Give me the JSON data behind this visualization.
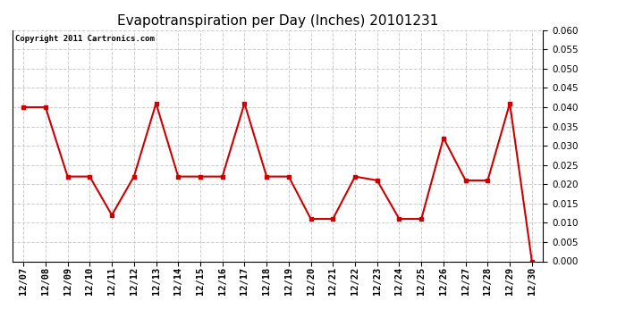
{
  "title": "Evapotranspiration per Day (Inches) 20101231",
  "copyright_text": "Copyright 2011 Cartronics.com",
  "x_labels": [
    "12/07",
    "12/08",
    "12/09",
    "12/10",
    "12/11",
    "12/12",
    "12/13",
    "12/14",
    "12/15",
    "12/16",
    "12/17",
    "12/18",
    "12/19",
    "12/20",
    "12/21",
    "12/22",
    "12/23",
    "12/24",
    "12/25",
    "12/26",
    "12/27",
    "12/28",
    "12/29",
    "12/30"
  ],
  "y_values": [
    0.04,
    0.04,
    0.022,
    0.022,
    0.012,
    0.022,
    0.041,
    0.022,
    0.022,
    0.022,
    0.041,
    0.022,
    0.022,
    0.011,
    0.011,
    0.022,
    0.021,
    0.011,
    0.011,
    0.032,
    0.021,
    0.021,
    0.041,
    0.0
  ],
  "line_color": "#cc0000",
  "marker": "s",
  "marker_size": 3,
  "ylim": [
    0.0,
    0.06
  ],
  "ytick_interval": 0.005,
  "background_color": "#ffffff",
  "plot_background": "#ffffff",
  "grid_color": "#cccccc",
  "title_fontsize": 11,
  "copyright_fontsize": 6.5,
  "tick_fontsize": 7.5
}
